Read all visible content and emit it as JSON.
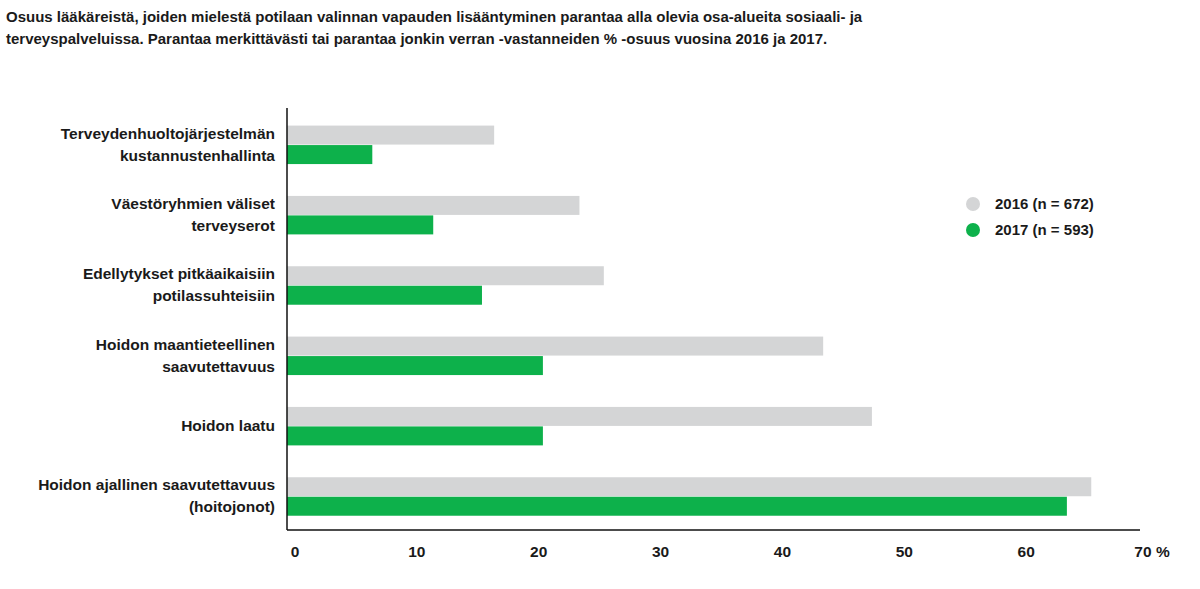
{
  "chart_data": {
    "type": "bar",
    "orientation": "horizontal",
    "title": "Osuus lääkäreistä, joiden mielestä potilaan valinnan vapauden lisääntyminen  parantaa alla olevia osa-alueita sosiaali- ja\nterveyspalveluissa. Parantaa merkittävästi  tai parantaa jonkin verran -vastanneiden % -osuus vuosina 2016 ja 2017.",
    "categories": [
      "Terveydenhuoltojärjestelmän\nkustannustenhallinta",
      "Väestöryhmien väliset\nterveyserot",
      "Edellytykset pitkäaikaisiin\npotilassuhteisiin",
      "Hoidon maantieteellinen\nsaavutettavuus",
      "Hoidon laatu",
      "Hoidon ajallinen saavutettavuus\n(hoitojonot)"
    ],
    "series": [
      {
        "name": "2016 (n = 672)",
        "color": "#d4d5d6",
        "values": [
          17,
          24,
          26,
          44,
          48,
          66
        ]
      },
      {
        "name": "2017 (n = 593)",
        "color": "#0db14b",
        "values": [
          7,
          12,
          16,
          21,
          21,
          64
        ]
      }
    ],
    "xlim": [
      0,
      70
    ],
    "xticks": [
      0,
      10,
      20,
      30,
      40,
      50,
      60,
      {
        "value": 70,
        "label": "70 %"
      }
    ],
    "grid": false,
    "legend": "right"
  }
}
